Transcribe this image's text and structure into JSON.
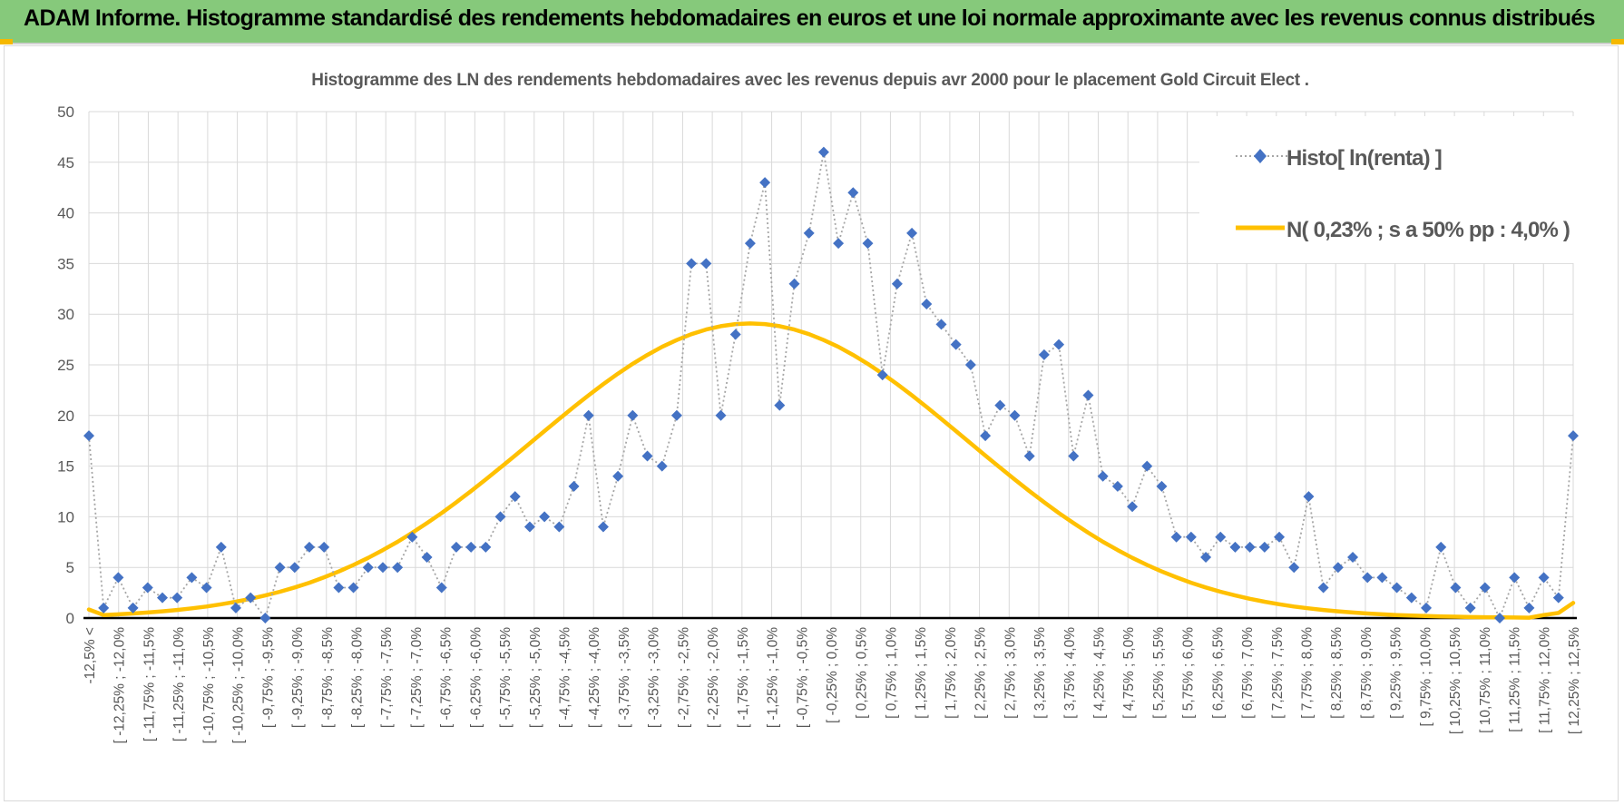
{
  "header": {
    "title": "ADAM Informe. Histogramme standardisé des rendements hebdomadaires en euros et une loi normale approximante avec les revenus connus distribués"
  },
  "colors": {
    "header_bg": "#86c97b",
    "histogram_marker": "#4472c4",
    "histogram_line": "#a6a6a6",
    "normal_curve": "#ffc000",
    "gridline": "#d9d9d9",
    "axis_text": "#595959"
  },
  "chart_data": {
    "type": "line",
    "title": "Histogramme  des LN des rendements hebdomadaires avec les revenus depuis avr 2000 pour le placement Gold Circuit Elect .",
    "xlabel": "",
    "ylabel": "",
    "ylim": [
      0,
      50
    ],
    "yticks": [
      0,
      5,
      10,
      15,
      20,
      25,
      30,
      35,
      40,
      45,
      50
    ],
    "grid": true,
    "legend_position": "top-right",
    "x_tick_labels": [
      "-12,5% <",
      "[ -12,25% ; -12,0% ",
      "[ -11,75% ; -11,5% ",
      "[ -11,25% ; -11,0% ",
      "[ -10,75% ; -10,5% ",
      "[ -10,25% ; -10,0% ",
      "[ -9,75% ; -9,5% ",
      "[ -9,25% ; -9,0% ",
      "[ -8,75% ; -8,5% ",
      "[ -8,25% ; -8,0% ",
      "[ -7,75% ; -7,5% ",
      "[ -7,25% ; -7,0% ",
      "[ -6,75% ; -6,5% ",
      "[ -6,25% ; -6,0% ",
      "[ -5,75% ; -5,5% ",
      "[ -5,25% ; -5,0% ",
      "[ -4,75% ; -4,5% ",
      "[ -4,25% ; -4,0% ",
      "[ -3,75% ; -3,5% ",
      "[ -3,25% ; -3,0% ",
      "[ -2,75% ; -2,5% ",
      "[ -2,25% ; -2,0% ",
      "[ -1,75% ; -1,5% ",
      "[ -1,25% ; -1,0% ",
      "[ -0,75% ; -0,5% ",
      "[ -0,25% ; 0,0% ",
      "[ 0,25% ; 0,5% ",
      "[ 0,75% ; 1,0% ",
      "[ 1,25% ; 1,5% ",
      "[ 1,75% ; 2,0% ",
      "[ 2,25% ; 2,5% ",
      "[ 2,75% ; 3,0% ",
      "[ 3,25% ; 3,5% ",
      "[ 3,75% ; 4,0% ",
      "[ 4,25% ; 4,5% ",
      "[ 4,75% ; 5,0% ",
      "[ 5,25% ; 5,5% ",
      "[ 5,75% ; 6,0% ",
      "[ 6,25% ; 6,5% ",
      "[ 6,75% ; 7,0% ",
      "[ 7,25% ; 7,5% ",
      "[ 7,75% ; 8,0% ",
      "[ 8,25% ; 8,5% ",
      "[ 8,75% ; 9,0% ",
      "[ 9,25% ; 9,5% ",
      "[ 9,75% ; 10,0% ",
      "[ 10,25% ; 10,5% ",
      "[ 10,75% ; 11,0% ",
      "[ 11,25% ; 11,5% ",
      "[ 11,75% ; 12,0% ",
      "[ 12,25% ; 12,5% "
    ],
    "series": [
      {
        "name": "Histo[ ln(renta) ]",
        "style": "dotted-line-diamond-markers",
        "values": [
          18,
          1,
          4,
          1,
          3,
          2,
          2,
          4,
          3,
          7,
          1,
          2,
          0,
          5,
          5,
          7,
          7,
          3,
          3,
          5,
          5,
          5,
          8,
          6,
          3,
          7,
          7,
          7,
          10,
          12,
          9,
          10,
          9,
          13,
          20,
          9,
          14,
          20,
          16,
          15,
          20,
          35,
          35,
          20,
          28,
          37,
          43,
          21,
          33,
          38,
          46,
          37,
          42,
          37,
          24,
          33,
          38,
          31,
          29,
          27,
          25,
          18,
          21,
          20,
          16,
          26,
          27,
          16,
          22,
          14,
          13,
          11,
          15,
          13,
          8,
          8,
          6,
          8,
          7,
          7,
          7,
          8,
          5,
          12,
          3,
          5,
          6,
          4,
          4,
          3,
          2,
          1,
          7,
          3,
          1,
          3,
          0,
          4,
          1,
          4,
          2,
          18
        ]
      },
      {
        "name": "N( 0,23% ; s a 50% pp : 4,0% )",
        "style": "solid-smooth-line",
        "values": [
          0.84,
          0.3,
          0.37,
          0.45,
          0.55,
          0.66,
          0.8,
          0.96,
          1.14,
          1.36,
          1.61,
          1.9,
          2.23,
          2.6,
          3.02,
          3.49,
          4.02,
          4.6,
          5.24,
          5.94,
          6.71,
          7.53,
          8.42,
          9.37,
          10.37,
          11.43,
          12.53,
          13.67,
          14.85,
          16.04,
          17.25,
          18.46,
          19.66,
          20.84,
          21.99,
          23.09,
          24.13,
          25.1,
          25.98,
          26.77,
          27.45,
          28.03,
          28.49,
          28.82,
          29.02,
          29.09,
          29.02,
          28.82,
          28.49,
          28.03,
          27.45,
          26.77,
          25.98,
          25.1,
          24.13,
          23.09,
          21.99,
          20.84,
          19.66,
          18.46,
          17.25,
          16.04,
          14.85,
          13.67,
          12.53,
          11.43,
          10.37,
          9.37,
          8.42,
          7.53,
          6.71,
          5.94,
          5.24,
          4.6,
          4.02,
          3.49,
          3.02,
          2.6,
          2.23,
          1.9,
          1.61,
          1.36,
          1.14,
          0.96,
          0.8,
          0.66,
          0.55,
          0.45,
          0.37,
          0.3,
          0.24,
          0.2,
          0.16,
          0.13,
          0.1,
          0.08,
          0.06,
          0.05,
          0.04,
          0.3,
          0.5,
          1.5
        ]
      }
    ]
  }
}
